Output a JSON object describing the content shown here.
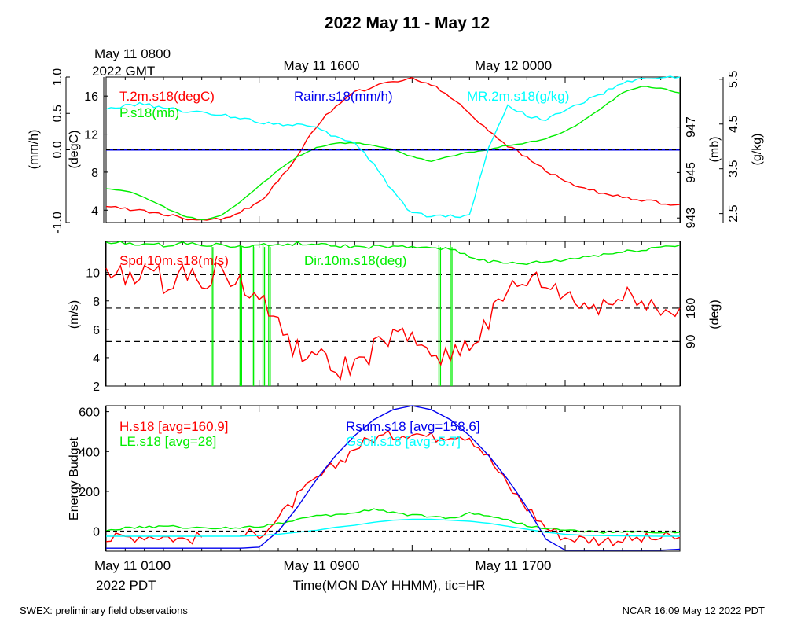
{
  "page": {
    "title": "2022 May 11 - May 12",
    "top_time_labels": [
      "May 11 0800",
      "2022 GMT",
      "May 11 1600",
      "May 12 0000"
    ],
    "bottom_time_labels": [
      "May 11 0100",
      "2022 PDT",
      "May 11 0900",
      "May 11 1700"
    ],
    "xlabel": "Time(MON DAY HHMM), tic=HR",
    "footer_left": "SWEX: preliminary field observations",
    "footer_right": "NCAR 16:09 May 12 2022 PDT"
  },
  "colors": {
    "red": "#ff0000",
    "green": "#00ee00",
    "blue": "#0000ee",
    "cyan": "#00ffff",
    "black": "#000000"
  },
  "chart_data": [
    {
      "type": "line",
      "title": "",
      "x_range_hours": [
        0,
        30
      ],
      "axes": {
        "rain": {
          "label": "(mm/h)",
          "ticks": [
            "-1.0",
            "0.0",
            "0.5",
            "1.0"
          ],
          "ylim": [
            -1,
            1
          ]
        },
        "temp": {
          "label": "(degC)",
          "ticks": [
            "4",
            "8",
            "12",
            "16"
          ],
          "ylim": [
            2.7,
            18.0
          ]
        },
        "pres": {
          "label": "(mb)",
          "ticks": [
            "943",
            "945",
            "947"
          ],
          "ylim": [
            942.8,
            949.2
          ]
        },
        "mr": {
          "label": "(g/kg)",
          "ticks": [
            "2.5",
            "3.5",
            "4.5",
            "5.5"
          ],
          "ylim": [
            2.3,
            5.55
          ]
        }
      },
      "legend": [
        "T.2m.s18(degC)",
        "P.s18(mb)",
        "Rainr.s18(mm/h)",
        "MR.2m.s18(g/kg)"
      ],
      "series": [
        {
          "name": "T.2m.s18(degC)",
          "axis": "temp",
          "color": "red",
          "x": [
            0,
            1,
            2,
            3,
            4,
            5,
            6,
            7,
            8,
            9,
            10,
            11,
            12,
            13,
            14,
            15,
            16,
            17,
            18,
            19,
            20,
            21,
            22,
            23,
            24,
            25,
            26,
            27,
            28,
            29,
            30
          ],
          "y": [
            4.3,
            4.2,
            3.9,
            3.6,
            3.2,
            3.0,
            3.1,
            3.8,
            4.8,
            7.0,
            9.8,
            12.8,
            15.0,
            16.4,
            17.0,
            17.5,
            17.9,
            17.2,
            15.9,
            14.2,
            12.4,
            10.8,
            9.5,
            8.2,
            7.0,
            6.3,
            5.8,
            5.3,
            5.0,
            4.8,
            4.6
          ]
        },
        {
          "name": "P.s18(mb)",
          "axis": "pres",
          "color": "green",
          "x": [
            0,
            1,
            2,
            3,
            4,
            5,
            6,
            7,
            8,
            9,
            10,
            11,
            12,
            13,
            14,
            15,
            16,
            17,
            18,
            19,
            20,
            21,
            22,
            23,
            24,
            25,
            26,
            27,
            28,
            29,
            30
          ],
          "y": [
            944.3,
            944.2,
            943.9,
            943.5,
            943.1,
            942.9,
            943.1,
            943.7,
            944.4,
            945.1,
            945.7,
            946.1,
            946.3,
            946.3,
            946.2,
            946.0,
            945.7,
            945.5,
            945.7,
            945.9,
            946.0,
            946.2,
            946.3,
            946.5,
            946.8,
            947.3,
            947.9,
            948.5,
            948.8,
            948.7,
            948.5
          ]
        },
        {
          "name": "Rainr.s18(mm/h)",
          "axis": "rain",
          "color": "black",
          "x": [
            0,
            30
          ],
          "y": [
            0.0,
            0.0
          ]
        },
        {
          "name": "MR.2m.s18(g/kg)",
          "axis": "mr",
          "color": "cyan",
          "x": [
            0,
            1,
            2,
            3,
            4,
            5,
            6,
            7,
            8,
            9,
            10,
            11,
            12,
            13,
            14,
            15,
            16,
            17,
            18,
            19,
            20,
            21,
            22,
            23,
            24,
            25,
            26,
            27,
            28,
            29,
            30
          ],
          "y": [
            4.85,
            4.9,
            4.95,
            4.85,
            4.8,
            4.75,
            4.7,
            4.65,
            4.55,
            4.5,
            4.5,
            4.4,
            4.2,
            4.1,
            3.6,
            3.0,
            2.5,
            2.45,
            2.45,
            2.45,
            4.0,
            4.9,
            4.7,
            4.6,
            4.8,
            5.0,
            5.2,
            5.4,
            5.5,
            5.55,
            5.55
          ]
        }
      ]
    },
    {
      "type": "line",
      "title": "",
      "x_range_hours": [
        0,
        30
      ],
      "axes": {
        "spd": {
          "label": "(m/s)",
          "ticks": [
            "2",
            "4",
            "6",
            "8",
            "10"
          ],
          "ylim": [
            2,
            12.2
          ]
        },
        "dir": {
          "label": "(deg)",
          "ticks": [
            "90",
            "180"
          ],
          "ylim": [
            -30,
            360
          ],
          "reference_lines": [
            90,
            180,
            270
          ]
        }
      },
      "legend": [
        "Spd.10m.s18(m/s)",
        "Dir.10m.s18(deg)"
      ],
      "series": [
        {
          "name": "Spd.10m.s18(m/s)",
          "axis": "spd",
          "color": "red",
          "x": [
            0,
            1,
            2,
            3,
            4,
            5,
            6,
            7,
            8,
            9,
            10,
            11,
            12,
            13,
            14,
            15,
            16,
            17,
            18,
            19,
            20,
            21,
            22,
            23,
            24,
            25,
            26,
            27,
            28,
            29,
            30
          ],
          "y": [
            9.8,
            9.6,
            10.2,
            9.4,
            9.9,
            9.6,
            10.0,
            9.2,
            8.0,
            6.5,
            4.5,
            4.0,
            3.0,
            3.5,
            4.5,
            5.5,
            5.0,
            4.5,
            4.2,
            5.0,
            6.5,
            8.5,
            9.5,
            9.0,
            8.5,
            7.5,
            7.8,
            8.0,
            8.5,
            7.0,
            7.5
          ]
        },
        {
          "name": "Dir.10m.s18(deg)",
          "axis": "dir",
          "color": "green",
          "x": [
            0,
            1,
            2,
            3,
            4,
            5,
            6,
            7,
            8,
            9,
            10,
            11,
            12,
            13,
            14,
            15,
            16,
            17,
            18,
            19,
            20,
            21,
            22,
            23,
            24,
            25,
            26,
            27,
            28,
            29,
            30
          ],
          "y": [
            355,
            355,
            352,
            350,
            355,
            352,
            350,
            345,
            350,
            350,
            355,
            350,
            348,
            345,
            345,
            345,
            342,
            345,
            340,
            320,
            305,
            300,
            300,
            305,
            310,
            318,
            325,
            330,
            338,
            345,
            350
          ],
          "dropouts_hours": [
            5.5,
            7.0,
            7.7,
            8.2,
            8.5,
            17.4,
            18.0
          ]
        }
      ]
    },
    {
      "type": "line",
      "title": "",
      "ylabel": "Energy Budget",
      "x_range_hours": [
        0,
        30
      ],
      "ylim": [
        -100,
        630
      ],
      "yticks": [
        0,
        200,
        400,
        600
      ],
      "legend": [
        "H.s18 [avg=160.9]",
        "LE.s18 [avg=28]",
        "Rsum.s18 [avg=158.6]",
        "Gsoil.s18 [avg=5.7]"
      ],
      "series": [
        {
          "name": "H.s18 [avg=160.9]",
          "color": "red",
          "x": [
            0,
            1,
            2,
            3,
            4,
            5,
            6,
            7,
            8,
            9,
            10,
            11,
            12,
            13,
            14,
            15,
            16,
            17,
            18,
            19,
            20,
            21,
            22,
            23,
            24,
            25,
            26,
            27,
            28,
            29,
            30
          ],
          "y": [
            -40,
            -30,
            -20,
            -25,
            -40,
            -30,
            null,
            -20,
            -10,
            60,
            170,
            260,
            330,
            420,
            470,
            480,
            500,
            470,
            490,
            480,
            370,
            230,
            120,
            20,
            -30,
            -40,
            -45,
            -40,
            -40,
            -35,
            -30
          ]
        },
        {
          "name": "LE.s18 [avg=28]",
          "color": "green",
          "x": [
            0,
            1,
            2,
            3,
            4,
            5,
            6,
            7,
            8,
            9,
            10,
            11,
            12,
            13,
            14,
            15,
            16,
            17,
            18,
            19,
            20,
            21,
            22,
            23,
            24,
            25,
            26,
            27,
            28,
            29,
            30
          ],
          "y": [
            5,
            15,
            20,
            25,
            20,
            15,
            15,
            20,
            25,
            40,
            60,
            75,
            80,
            95,
            110,
            95,
            80,
            75,
            65,
            90,
            80,
            55,
            30,
            15,
            5,
            0,
            -5,
            -5,
            -5,
            -5,
            -5
          ]
        },
        {
          "name": "Rsum.s18 [avg=158.6]",
          "color": "blue",
          "x": [
            0,
            1,
            2,
            3,
            4,
            5,
            6,
            7,
            8,
            9,
            10,
            11,
            12,
            13,
            14,
            15,
            16,
            17,
            18,
            19,
            20,
            21,
            22,
            23,
            24,
            25,
            26,
            27,
            28,
            29,
            30
          ],
          "y": [
            -85,
            -85,
            -85,
            -85,
            -85,
            -85,
            -85,
            -85,
            -80,
            0,
            120,
            260,
            380,
            480,
            560,
            610,
            630,
            610,
            560,
            480,
            380,
            260,
            120,
            -40,
            -95,
            -95,
            -95,
            -95,
            -95,
            -95,
            -90
          ]
        },
        {
          "name": "Gsoil.s18 [avg=5.7]",
          "color": "cyan",
          "x": [
            0,
            1,
            2,
            3,
            4,
            5,
            6,
            7,
            8,
            9,
            10,
            11,
            12,
            13,
            14,
            15,
            16,
            17,
            18,
            19,
            20,
            21,
            22,
            23,
            24,
            25,
            26,
            27,
            28,
            29,
            30
          ],
          "y": [
            -25,
            -25,
            -25,
            -25,
            -25,
            -25,
            -25,
            -25,
            -22,
            -15,
            -5,
            5,
            20,
            30,
            45,
            55,
            60,
            60,
            55,
            50,
            40,
            25,
            10,
            -5,
            -15,
            -20,
            -22,
            -23,
            -24,
            -25,
            -25
          ]
        },
        {
          "name": "zero",
          "color": "black",
          "dash": true,
          "x": [
            0,
            30
          ],
          "y": [
            0,
            0
          ]
        }
      ]
    }
  ]
}
